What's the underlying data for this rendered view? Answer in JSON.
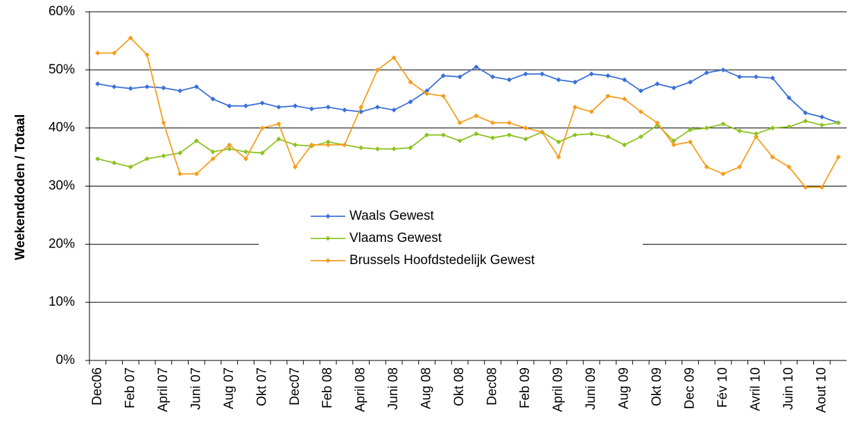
{
  "chart_data": {
    "type": "line",
    "y_label": "Weekenddoden / Totaal",
    "categories": [
      "Dec06",
      null,
      "Feb 07",
      null,
      "April 07",
      null,
      "Juni 07",
      null,
      "Aug 07",
      null,
      "Okt 07",
      null,
      "Dec07",
      null,
      "Feb 08",
      null,
      "April 08",
      null,
      "Juni 08",
      null,
      "Aug 08",
      null,
      "Okt 08",
      null,
      "Dec08",
      null,
      "Feb 09",
      null,
      "April 09",
      null,
      "Juni 09",
      null,
      "Aug 09",
      null,
      "Okt 09",
      null,
      "Dec 09",
      null,
      "Fév 10",
      null,
      "Avril 10",
      null,
      "Juin 10",
      null,
      "Aout 10",
      null
    ],
    "series": [
      {
        "name": "Waals Gewest",
        "color": "#3a6fd8",
        "values": [
          47.6,
          47.1,
          46.8,
          47.1,
          46.9,
          46.4,
          47.1,
          45.0,
          43.8,
          43.8,
          44.3,
          43.6,
          43.8,
          43.3,
          43.6,
          43.1,
          42.8,
          43.6,
          43.1,
          44.5,
          46.4,
          49.0,
          48.8,
          50.5,
          48.8,
          48.3,
          49.3,
          49.3,
          48.3,
          47.9,
          49.3,
          49.0,
          48.3,
          46.4,
          47.6,
          46.9,
          47.9,
          49.5,
          50.0,
          48.8,
          48.8,
          48.6,
          45.2,
          42.6,
          41.9,
          40.9
        ]
      },
      {
        "name": "Vlaams Gewest",
        "color": "#8dc21f",
        "values": [
          34.7,
          34.0,
          33.3,
          34.7,
          35.2,
          35.7,
          37.8,
          35.9,
          36.4,
          35.9,
          35.7,
          38.1,
          37.1,
          36.9,
          37.6,
          37.1,
          36.6,
          36.4,
          36.4,
          36.6,
          38.8,
          38.8,
          37.8,
          39.0,
          38.3,
          38.8,
          38.1,
          39.3,
          37.6,
          38.8,
          39.0,
          38.5,
          37.1,
          38.5,
          40.5,
          37.8,
          39.7,
          40.0,
          40.7,
          39.5,
          39.0,
          40.0,
          40.2,
          41.2,
          40.5,
          40.9
        ]
      },
      {
        "name": "Brussels Hoofdstedelijk Gewest",
        "color": "#f59d1c",
        "values": [
          52.9,
          52.9,
          55.5,
          52.6,
          40.9,
          32.1,
          32.1,
          34.7,
          37.1,
          34.7,
          40.0,
          40.7,
          33.3,
          37.1,
          37.1,
          37.1,
          43.6,
          50.0,
          52.1,
          47.9,
          45.9,
          45.5,
          40.9,
          42.1,
          40.9,
          40.9,
          40.0,
          39.3,
          35.0,
          43.6,
          42.8,
          45.5,
          45.0,
          42.8,
          40.9,
          37.1,
          37.6,
          33.3,
          32.1,
          33.3,
          38.5,
          35.0,
          33.3,
          29.8,
          29.8,
          35.0
        ]
      }
    ],
    "ylim": [
      0,
      60
    ],
    "yticks": [
      {
        "value": 0,
        "label": "0%"
      },
      {
        "value": 10,
        "label": "10%"
      },
      {
        "value": 20,
        "label": "20%"
      },
      {
        "value": 30,
        "label": "30%"
      },
      {
        "value": 40,
        "label": "40%"
      },
      {
        "value": 50,
        "label": "50%"
      },
      {
        "value": 60,
        "label": "60%"
      }
    ],
    "grid": true,
    "legend": "center"
  }
}
